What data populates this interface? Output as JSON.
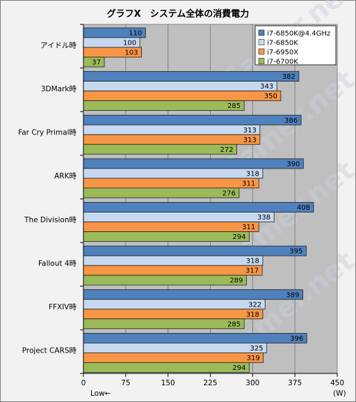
{
  "chart_data": {
    "type": "bar",
    "orientation": "horizontal",
    "title": "グラフX　システム全体の消費電力",
    "categories": [
      "アイドル時",
      "3DMark時",
      "Far Cry Primal時",
      "ARK時",
      "The Division時",
      "Fallout 4時",
      "FFXIV時",
      "Project CARS時"
    ],
    "series": [
      {
        "name": "i7-6850K@4.4GHz",
        "color": "#4f81bd",
        "values": [
          110,
          382,
          386,
          390,
          408,
          395,
          389,
          396
        ]
      },
      {
        "name": "i7-6850K",
        "color": "#c6d9f1",
        "values": [
          100,
          343,
          313,
          318,
          338,
          318,
          322,
          325
        ]
      },
      {
        "name": "i7-6950X",
        "color": "#f79646",
        "values": [
          103,
          350,
          313,
          311,
          311,
          317,
          318,
          319
        ]
      },
      {
        "name": "i7-6700K",
        "color": "#9bbb59",
        "values": [
          37,
          285,
          272,
          276,
          294,
          289,
          285,
          294
        ]
      }
    ],
    "xlim": [
      0,
      450
    ],
    "xticks": [
      0,
      75,
      150,
      225,
      300,
      375,
      450
    ],
    "xlabel_left": "Low←",
    "xlabel_right": "(W)",
    "legend_position": "top-right",
    "grid": "vertical gridlines",
    "watermark": "4Gamer.net"
  }
}
